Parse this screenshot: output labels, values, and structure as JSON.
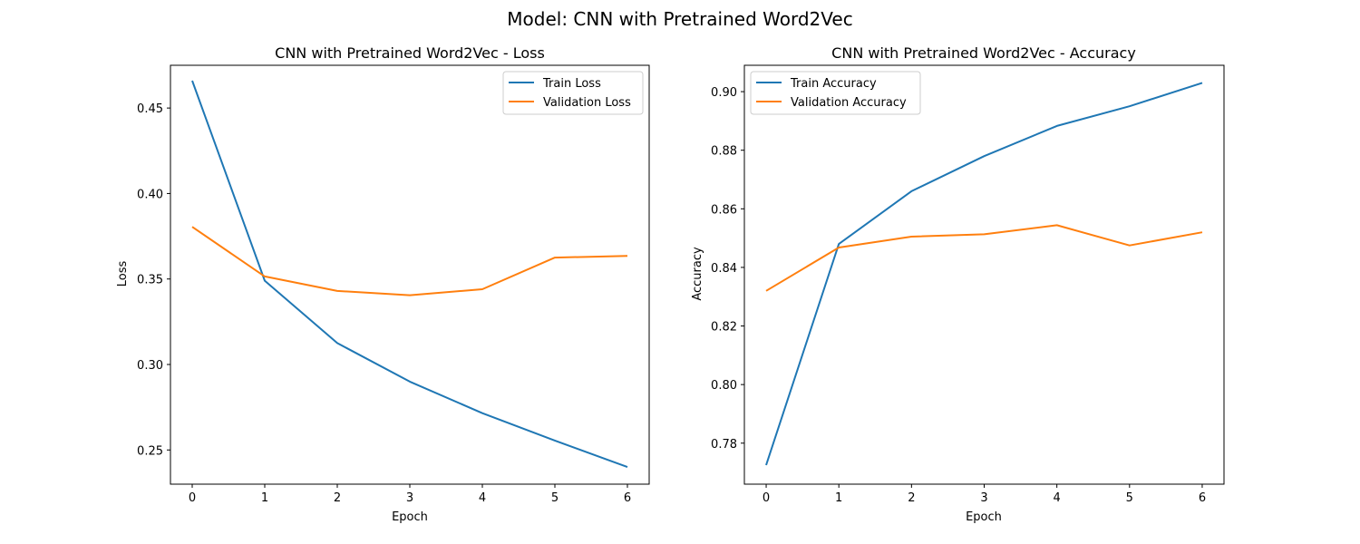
{
  "figure": {
    "suptitle": "Model: CNN with Pretrained Word2Vec"
  },
  "colors": {
    "train": "#1f77b4",
    "validation": "#ff7f0e",
    "axes": "#000000",
    "legend_border": "#cccccc"
  },
  "chart_data": [
    {
      "type": "line",
      "title": "CNN with Pretrained Word2Vec - Loss",
      "xlabel": "Epoch",
      "ylabel": "Loss",
      "xlim": [
        -0.3,
        6.3
      ],
      "ylim": [
        0.23,
        0.475
      ],
      "xticks": [
        0,
        1,
        2,
        3,
        4,
        5,
        6
      ],
      "yticks": [
        0.25,
        0.3,
        0.35,
        0.4,
        0.45
      ],
      "ytick_labels": [
        "0.25",
        "0.30",
        "0.35",
        "0.40",
        "0.45"
      ],
      "grid": false,
      "legend_position": "top-right",
      "x": [
        0,
        1,
        2,
        3,
        4,
        5,
        6
      ],
      "series": [
        {
          "name": "Train Loss",
          "color": "#1f77b4",
          "values": [
            0.466,
            0.349,
            0.3125,
            0.29,
            0.2715,
            0.2555,
            0.24
          ]
        },
        {
          "name": "Validation Loss",
          "color": "#ff7f0e",
          "values": [
            0.3805,
            0.3515,
            0.343,
            0.3405,
            0.344,
            0.3625,
            0.3635
          ]
        }
      ]
    },
    {
      "type": "line",
      "title": "CNN with Pretrained Word2Vec - Accuracy",
      "xlabel": "Epoch",
      "ylabel": "Accuracy",
      "xlim": [
        -0.3,
        6.3
      ],
      "ylim": [
        0.766,
        0.909
      ],
      "xticks": [
        0,
        1,
        2,
        3,
        4,
        5,
        6
      ],
      "yticks": [
        0.78,
        0.8,
        0.82,
        0.84,
        0.86,
        0.88,
        0.9
      ],
      "ytick_labels": [
        "0.78",
        "0.80",
        "0.82",
        "0.84",
        "0.86",
        "0.88",
        "0.90"
      ],
      "grid": false,
      "legend_position": "top-left",
      "x": [
        0,
        1,
        2,
        3,
        4,
        5,
        6
      ],
      "series": [
        {
          "name": "Train Accuracy",
          "color": "#1f77b4",
          "values": [
            0.7725,
            0.848,
            0.866,
            0.878,
            0.8883,
            0.895,
            0.903
          ]
        },
        {
          "name": "Validation Accuracy",
          "color": "#ff7f0e",
          "values": [
            0.832,
            0.8468,
            0.8505,
            0.8513,
            0.8544,
            0.8475,
            0.852
          ]
        }
      ]
    }
  ]
}
